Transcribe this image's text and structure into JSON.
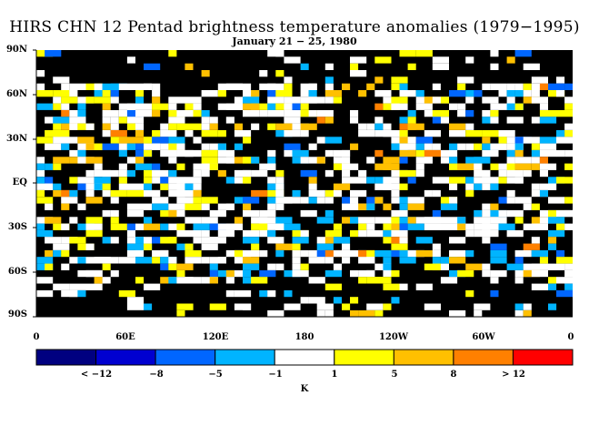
{
  "title": "HIRS CHN 12 Pentad brightness temperature anomalies (1979−1995)",
  "subtitle": "January 21 − 25, 1980",
  "lat_labels": [
    "90N",
    "60N",
    "30N",
    "EQ",
    "30S",
    "60S",
    "90S"
  ],
  "lon_labels": [
    "0",
    "60E",
    "120E",
    "180",
    "120W",
    "60W",
    "0"
  ],
  "colorbar": {
    "colors": [
      "#000080",
      "#0000d0",
      "#0066ff",
      "#00b4ff",
      "#ffffff",
      "#ffff00",
      "#ffc000",
      "#ff8000",
      "#ff0000"
    ],
    "labels": [
      "< −12",
      "−8",
      "−5",
      "−1",
      "1",
      "5",
      "8",
      "> 12"
    ],
    "unit": "K"
  },
  "colors": {
    "background": "#000000",
    "anomaly_cells": [
      "#ffffff",
      "#ffff00",
      "#00b4ff",
      "#ffc000",
      "#0066ff",
      "#ff8000"
    ]
  }
}
